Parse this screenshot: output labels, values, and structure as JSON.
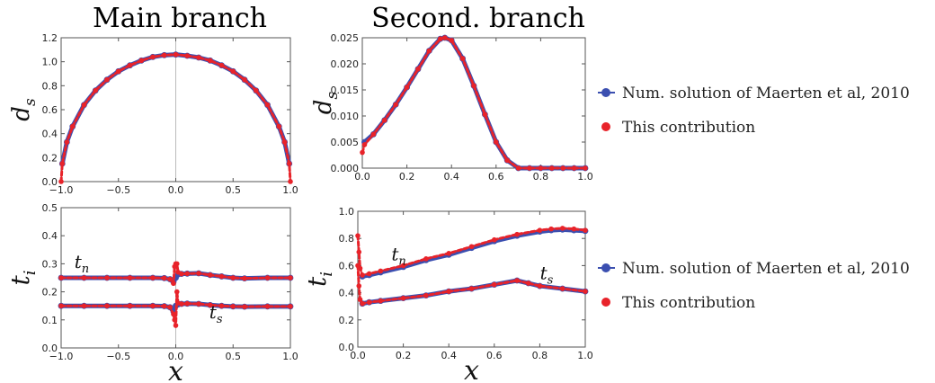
{
  "titles": {
    "left": "Main branch",
    "right": "Second. branch"
  },
  "legend": {
    "num_label": "Num. solution of Maerten et al, 2010",
    "this_label": "This contribution"
  },
  "colors": {
    "numerical": "#3b4fb0",
    "contribution": "#e8232a"
  },
  "chart_data": [
    {
      "id": "main-ds",
      "type": "scatter",
      "title": "Main branch",
      "xlabel": "",
      "ylabel": "d_s",
      "xlim": [
        -1.0,
        1.0
      ],
      "ylim": [
        0.0,
        1.2
      ],
      "xticks": [
        "−1.0",
        "−0.5",
        "0.0",
        "0.5",
        "1.0"
      ],
      "yticks": [
        "0.0",
        "0.2",
        "0.4",
        "0.6",
        "0.8",
        "1.0",
        "1.2"
      ],
      "series": [
        {
          "name": "Num. solution of Maerten et al, 2010",
          "x": [
            -0.99,
            -0.95,
            -0.9,
            -0.8,
            -0.7,
            -0.6,
            -0.5,
            -0.4,
            -0.3,
            -0.2,
            -0.1,
            0.0,
            0.1,
            0.2,
            0.3,
            0.4,
            0.5,
            0.6,
            0.7,
            0.8,
            0.9,
            0.95,
            0.99
          ],
          "y": [
            0.15,
            0.33,
            0.46,
            0.64,
            0.76,
            0.85,
            0.92,
            0.97,
            1.01,
            1.04,
            1.055,
            1.06,
            1.05,
            1.035,
            1.01,
            0.97,
            0.92,
            0.85,
            0.76,
            0.64,
            0.46,
            0.33,
            0.15
          ]
        },
        {
          "name": "This contribution",
          "x": [
            -1.0,
            -0.99,
            -0.95,
            -0.9,
            -0.8,
            -0.7,
            -0.6,
            -0.5,
            -0.4,
            -0.3,
            -0.2,
            -0.1,
            0.0,
            0.1,
            0.2,
            0.3,
            0.4,
            0.5,
            0.6,
            0.7,
            0.8,
            0.9,
            0.95,
            0.99,
            1.0
          ],
          "y": [
            0.0,
            0.15,
            0.33,
            0.46,
            0.64,
            0.76,
            0.85,
            0.92,
            0.97,
            1.01,
            1.04,
            1.055,
            1.06,
            1.05,
            1.035,
            1.01,
            0.97,
            0.92,
            0.85,
            0.76,
            0.64,
            0.46,
            0.33,
            0.15,
            0.0
          ]
        }
      ]
    },
    {
      "id": "second-ds",
      "type": "scatter",
      "title": "Second. branch",
      "xlabel": "",
      "ylabel": "d_s",
      "xlim": [
        0.0,
        1.0
      ],
      "ylim": [
        0.0,
        0.025
      ],
      "xticks": [
        "0.0",
        "0.2",
        "0.4",
        "0.6",
        "0.8",
        "1.0"
      ],
      "yticks": [
        "0.000",
        "0.005",
        "0.010",
        "0.015",
        "0.020",
        "0.025"
      ],
      "series": [
        {
          "name": "Num. solution of Maerten et al, 2010",
          "x": [
            0.01,
            0.05,
            0.1,
            0.15,
            0.2,
            0.25,
            0.3,
            0.35,
            0.37,
            0.4,
            0.45,
            0.5,
            0.55,
            0.6,
            0.65,
            0.7,
            0.75,
            0.8,
            0.85,
            0.9,
            0.95,
            1.0
          ],
          "y": [
            0.005,
            0.0065,
            0.0092,
            0.0122,
            0.0155,
            0.019,
            0.0225,
            0.0248,
            0.025,
            0.0245,
            0.021,
            0.0158,
            0.0103,
            0.005,
            0.0015,
            0.0,
            0.0,
            0.0,
            0.0,
            0.0,
            0.0,
            0.0
          ]
        },
        {
          "name": "This contribution",
          "x": [
            0.0,
            0.01,
            0.05,
            0.1,
            0.15,
            0.2,
            0.25,
            0.3,
            0.35,
            0.37,
            0.4,
            0.45,
            0.5,
            0.55,
            0.6,
            0.65,
            0.7,
            0.75,
            0.8,
            0.85,
            0.9,
            0.95,
            1.0
          ],
          "y": [
            0.003,
            0.0045,
            0.0065,
            0.0092,
            0.0122,
            0.0155,
            0.019,
            0.0225,
            0.0248,
            0.025,
            0.0245,
            0.021,
            0.0158,
            0.0103,
            0.005,
            0.0015,
            0.0,
            0.0,
            0.0,
            0.0,
            0.0,
            0.0,
            0.0
          ]
        }
      ]
    },
    {
      "id": "main-ti",
      "type": "scatter",
      "title": "",
      "xlabel": "x",
      "ylabel": "t_i",
      "xlim": [
        -1.0,
        1.0
      ],
      "ylim": [
        0.0,
        0.5
      ],
      "xticks": [
        "−1.0",
        "−0.5",
        "0.0",
        "0.5",
        "1.0"
      ],
      "yticks": [
        "0.0",
        "0.1",
        "0.2",
        "0.3",
        "0.4",
        "0.5"
      ],
      "annotations": [
        "t_n",
        "t_s"
      ],
      "series": [
        {
          "name": "t_n Num. solution",
          "x": [
            -1.0,
            -0.8,
            -0.6,
            -0.4,
            -0.2,
            -0.1,
            -0.05,
            -0.02,
            0.0,
            0.02,
            0.05,
            0.1,
            0.2,
            0.3,
            0.4,
            0.5,
            0.6,
            0.8,
            1.0
          ],
          "y": [
            0.25,
            0.25,
            0.25,
            0.25,
            0.25,
            0.249,
            0.245,
            0.235,
            0.25,
            0.262,
            0.264,
            0.265,
            0.266,
            0.26,
            0.255,
            0.25,
            0.248,
            0.25,
            0.25
          ]
        },
        {
          "name": "t_n This contribution",
          "x": [
            -1.0,
            -0.8,
            -0.6,
            -0.4,
            -0.2,
            -0.1,
            -0.05,
            -0.02,
            -0.01,
            0.0,
            0.01,
            0.02,
            0.05,
            0.1,
            0.2,
            0.3,
            0.4,
            0.5,
            0.6,
            0.8,
            1.0
          ],
          "y": [
            0.25,
            0.25,
            0.25,
            0.25,
            0.25,
            0.249,
            0.245,
            0.23,
            0.29,
            0.3,
            0.3,
            0.27,
            0.264,
            0.265,
            0.266,
            0.26,
            0.255,
            0.25,
            0.248,
            0.25,
            0.25
          ]
        },
        {
          "name": "t_s Num. solution",
          "x": [
            -1.0,
            -0.8,
            -0.6,
            -0.4,
            -0.2,
            -0.1,
            -0.05,
            -0.02,
            0.0,
            0.02,
            0.05,
            0.1,
            0.2,
            0.3,
            0.4,
            0.5,
            0.6,
            0.8,
            1.0
          ],
          "y": [
            0.15,
            0.15,
            0.15,
            0.15,
            0.15,
            0.149,
            0.145,
            0.13,
            0.15,
            0.155,
            0.157,
            0.158,
            0.157,
            0.153,
            0.15,
            0.148,
            0.147,
            0.148,
            0.148
          ]
        },
        {
          "name": "t_s This contribution",
          "x": [
            -1.0,
            -0.8,
            -0.6,
            -0.4,
            -0.2,
            -0.1,
            -0.05,
            -0.02,
            -0.01,
            0.0,
            0.01,
            0.02,
            0.05,
            0.1,
            0.2,
            0.3,
            0.4,
            0.5,
            0.6,
            0.8,
            1.0
          ],
          "y": [
            0.15,
            0.15,
            0.15,
            0.15,
            0.15,
            0.149,
            0.145,
            0.12,
            0.1,
            0.08,
            0.2,
            0.16,
            0.157,
            0.158,
            0.157,
            0.153,
            0.15,
            0.148,
            0.147,
            0.148,
            0.148
          ]
        }
      ]
    },
    {
      "id": "second-ti",
      "type": "scatter",
      "title": "",
      "xlabel": "x",
      "ylabel": "t_i",
      "xlim": [
        0.0,
        1.0
      ],
      "ylim": [
        0.0,
        1.0
      ],
      "xticks": [
        "0.0",
        "0.2",
        "0.4",
        "0.6",
        "0.8",
        "1.0"
      ],
      "yticks": [
        "0.0",
        "0.2",
        "0.4",
        "0.6",
        "0.8",
        "1.0"
      ],
      "annotations": [
        "t_n",
        "t_s"
      ],
      "series": [
        {
          "name": "t_n Num. solution",
          "x": [
            0.02,
            0.05,
            0.1,
            0.2,
            0.3,
            0.4,
            0.5,
            0.6,
            0.7,
            0.8,
            0.85,
            0.9,
            0.95,
            1.0
          ],
          "y": [
            0.52,
            0.53,
            0.55,
            0.59,
            0.64,
            0.68,
            0.73,
            0.78,
            0.82,
            0.85,
            0.86,
            0.865,
            0.86,
            0.855
          ]
        },
        {
          "name": "t_n This contribution",
          "x": [
            0.0,
            0.005,
            0.01,
            0.02,
            0.05,
            0.1,
            0.2,
            0.3,
            0.4,
            0.5,
            0.6,
            0.7,
            0.8,
            0.85,
            0.9,
            0.95,
            1.0
          ],
          "y": [
            0.82,
            0.7,
            0.58,
            0.53,
            0.54,
            0.56,
            0.6,
            0.65,
            0.69,
            0.74,
            0.79,
            0.83,
            0.86,
            0.87,
            0.875,
            0.87,
            0.86
          ]
        },
        {
          "name": "t_s Num. solution",
          "x": [
            0.02,
            0.05,
            0.1,
            0.2,
            0.3,
            0.4,
            0.5,
            0.6,
            0.7,
            0.75,
            0.8,
            0.9,
            1.0
          ],
          "y": [
            0.32,
            0.33,
            0.34,
            0.36,
            0.38,
            0.41,
            0.43,
            0.46,
            0.49,
            0.47,
            0.45,
            0.43,
            0.41
          ]
        },
        {
          "name": "t_s This contribution",
          "x": [
            0.0,
            0.005,
            0.01,
            0.02,
            0.05,
            0.1,
            0.2,
            0.3,
            0.4,
            0.5,
            0.6,
            0.7,
            0.75,
            0.8,
            0.9,
            1.0
          ],
          "y": [
            0.6,
            0.45,
            0.35,
            0.32,
            0.33,
            0.34,
            0.36,
            0.38,
            0.41,
            0.43,
            0.46,
            0.49,
            0.47,
            0.45,
            0.43,
            0.41
          ]
        }
      ]
    }
  ]
}
